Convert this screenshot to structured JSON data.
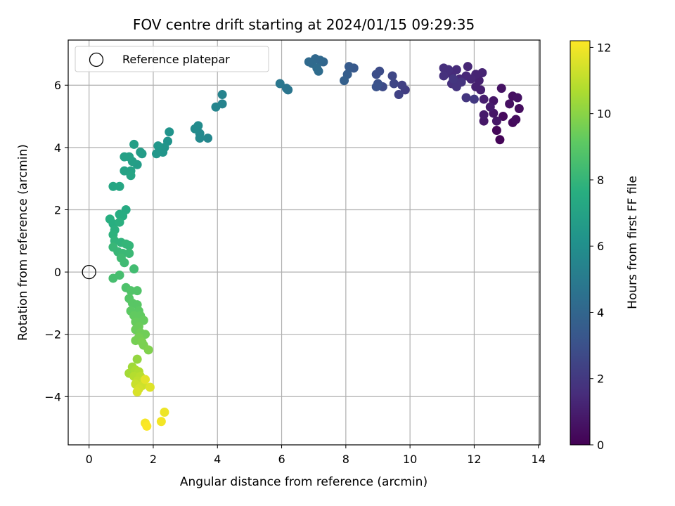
{
  "chart_data": {
    "type": "scatter",
    "title": "FOV centre drift starting at 2024/01/15 09:29:35",
    "xlabel": "Angular distance from reference (arcmin)",
    "ylabel": "Rotation from reference (arcmin)",
    "xlim": [
      -0.65,
      14.05
    ],
    "ylim": [
      -5.55,
      7.45
    ],
    "xticks": [
      0,
      2,
      4,
      6,
      8,
      10,
      12,
      14
    ],
    "yticks": [
      -4,
      -2,
      0,
      2,
      4,
      6
    ],
    "grid": true,
    "legend": {
      "position": "top-left",
      "entries": [
        "Reference platepar"
      ]
    },
    "reference_point": {
      "x": 0,
      "y": 0,
      "label": "Reference platepar"
    },
    "colorbar": {
      "label": "Hours from first FF file",
      "range": [
        0,
        12.2
      ],
      "ticks": [
        0,
        2,
        4,
        6,
        8,
        10,
        12
      ],
      "colormap": "viridis"
    },
    "points": [
      {
        "x": 12.8,
        "y": 4.25,
        "c": 0.1
      },
      {
        "x": 12.7,
        "y": 4.55,
        "c": 0.2
      },
      {
        "x": 12.9,
        "y": 5.0,
        "c": 0.3
      },
      {
        "x": 13.2,
        "y": 4.8,
        "c": 0.3
      },
      {
        "x": 13.3,
        "y": 4.9,
        "c": 0.4
      },
      {
        "x": 13.4,
        "y": 5.25,
        "c": 0.4
      },
      {
        "x": 13.1,
        "y": 5.4,
        "c": 0.5
      },
      {
        "x": 13.2,
        "y": 5.65,
        "c": 0.5
      },
      {
        "x": 13.35,
        "y": 5.6,
        "c": 0.6
      },
      {
        "x": 12.85,
        "y": 5.9,
        "c": 0.6
      },
      {
        "x": 12.6,
        "y": 5.5,
        "c": 0.7
      },
      {
        "x": 12.6,
        "y": 5.1,
        "c": 0.7
      },
      {
        "x": 12.7,
        "y": 4.85,
        "c": 0.8
      },
      {
        "x": 12.3,
        "y": 4.85,
        "c": 0.8
      },
      {
        "x": 12.3,
        "y": 5.05,
        "c": 0.9
      },
      {
        "x": 12.5,
        "y": 5.3,
        "c": 0.9
      },
      {
        "x": 12.3,
        "y": 5.55,
        "c": 1.0
      },
      {
        "x": 12.2,
        "y": 5.85,
        "c": 1.0
      },
      {
        "x": 12.05,
        "y": 5.95,
        "c": 1.1
      },
      {
        "x": 12.15,
        "y": 6.15,
        "c": 1.1
      },
      {
        "x": 12.25,
        "y": 6.4,
        "c": 1.2
      },
      {
        "x": 12.05,
        "y": 6.35,
        "c": 1.2
      },
      {
        "x": 11.9,
        "y": 6.2,
        "c": 1.3
      },
      {
        "x": 11.8,
        "y": 6.6,
        "c": 1.3
      },
      {
        "x": 11.75,
        "y": 6.3,
        "c": 1.4
      },
      {
        "x": 11.55,
        "y": 6.2,
        "c": 1.4
      },
      {
        "x": 11.45,
        "y": 6.5,
        "c": 1.5
      },
      {
        "x": 11.3,
        "y": 6.35,
        "c": 1.5
      },
      {
        "x": 11.2,
        "y": 6.5,
        "c": 1.6
      },
      {
        "x": 11.05,
        "y": 6.55,
        "c": 1.6
      },
      {
        "x": 11.05,
        "y": 6.3,
        "c": 1.7
      },
      {
        "x": 11.3,
        "y": 6.05,
        "c": 1.7
      },
      {
        "x": 11.45,
        "y": 5.95,
        "c": 1.8
      },
      {
        "x": 11.6,
        "y": 6.1,
        "c": 1.8
      },
      {
        "x": 11.35,
        "y": 6.2,
        "c": 1.9
      },
      {
        "x": 11.75,
        "y": 5.6,
        "c": 1.9
      },
      {
        "x": 12.0,
        "y": 5.55,
        "c": 2.0
      },
      {
        "x": 9.85,
        "y": 5.85,
        "c": 2.2
      },
      {
        "x": 9.75,
        "y": 6.0,
        "c": 2.3
      },
      {
        "x": 9.65,
        "y": 5.7,
        "c": 2.4
      },
      {
        "x": 9.5,
        "y": 6.05,
        "c": 2.5
      },
      {
        "x": 9.45,
        "y": 6.3,
        "c": 2.6
      },
      {
        "x": 9.15,
        "y": 5.95,
        "c": 2.7
      },
      {
        "x": 9.05,
        "y": 6.45,
        "c": 2.8
      },
      {
        "x": 8.95,
        "y": 6.35,
        "c": 2.9
      },
      {
        "x": 9.0,
        "y": 6.05,
        "c": 3.0
      },
      {
        "x": 8.95,
        "y": 5.95,
        "c": 3.1
      },
      {
        "x": 8.25,
        "y": 6.55,
        "c": 3.4
      },
      {
        "x": 8.1,
        "y": 6.6,
        "c": 3.5
      },
      {
        "x": 8.05,
        "y": 6.35,
        "c": 3.6
      },
      {
        "x": 7.95,
        "y": 6.15,
        "c": 3.7
      },
      {
        "x": 7.3,
        "y": 6.75,
        "c": 4.0
      },
      {
        "x": 7.2,
        "y": 6.8,
        "c": 4.1
      },
      {
        "x": 7.05,
        "y": 6.85,
        "c": 4.1
      },
      {
        "x": 6.95,
        "y": 6.7,
        "c": 4.2
      },
      {
        "x": 6.85,
        "y": 6.75,
        "c": 4.2
      },
      {
        "x": 7.1,
        "y": 6.55,
        "c": 4.3
      },
      {
        "x": 7.15,
        "y": 6.45,
        "c": 4.3
      },
      {
        "x": 6.2,
        "y": 5.85,
        "c": 4.7
      },
      {
        "x": 6.15,
        "y": 5.9,
        "c": 4.7
      },
      {
        "x": 5.95,
        "y": 6.05,
        "c": 4.8
      },
      {
        "x": 4.15,
        "y": 5.7,
        "c": 5.4
      },
      {
        "x": 4.15,
        "y": 5.4,
        "c": 5.4
      },
      {
        "x": 3.95,
        "y": 5.3,
        "c": 5.5
      },
      {
        "x": 3.7,
        "y": 4.3,
        "c": 5.6
      },
      {
        "x": 3.45,
        "y": 4.45,
        "c": 5.7
      },
      {
        "x": 3.45,
        "y": 4.3,
        "c": 5.7
      },
      {
        "x": 3.4,
        "y": 4.7,
        "c": 5.8
      },
      {
        "x": 3.3,
        "y": 4.6,
        "c": 5.8
      },
      {
        "x": 2.5,
        "y": 4.5,
        "c": 6.2
      },
      {
        "x": 2.45,
        "y": 4.2,
        "c": 6.2
      },
      {
        "x": 2.35,
        "y": 4.0,
        "c": 6.3
      },
      {
        "x": 2.3,
        "y": 3.85,
        "c": 6.3
      },
      {
        "x": 2.15,
        "y": 4.05,
        "c": 6.4
      },
      {
        "x": 2.1,
        "y": 3.8,
        "c": 6.4
      },
      {
        "x": 1.65,
        "y": 3.8,
        "c": 6.6
      },
      {
        "x": 1.6,
        "y": 3.85,
        "c": 6.7
      },
      {
        "x": 1.5,
        "y": 3.45,
        "c": 6.7
      },
      {
        "x": 1.4,
        "y": 4.1,
        "c": 6.8
      },
      {
        "x": 1.35,
        "y": 3.55,
        "c": 6.8
      },
      {
        "x": 1.25,
        "y": 3.7,
        "c": 6.9
      },
      {
        "x": 1.1,
        "y": 3.7,
        "c": 6.9
      },
      {
        "x": 1.3,
        "y": 3.25,
        "c": 7.0
      },
      {
        "x": 1.1,
        "y": 3.25,
        "c": 7.0
      },
      {
        "x": 1.3,
        "y": 3.1,
        "c": 7.1
      },
      {
        "x": 0.95,
        "y": 2.75,
        "c": 7.2
      },
      {
        "x": 0.75,
        "y": 2.75,
        "c": 7.2
      },
      {
        "x": 1.15,
        "y": 2.0,
        "c": 7.4
      },
      {
        "x": 1.05,
        "y": 1.8,
        "c": 7.5
      },
      {
        "x": 0.95,
        "y": 1.85,
        "c": 7.5
      },
      {
        "x": 0.65,
        "y": 1.7,
        "c": 7.6
      },
      {
        "x": 0.75,
        "y": 1.55,
        "c": 7.6
      },
      {
        "x": 0.95,
        "y": 1.6,
        "c": 7.7
      },
      {
        "x": 0.8,
        "y": 1.35,
        "c": 7.7
      },
      {
        "x": 0.75,
        "y": 1.2,
        "c": 7.8
      },
      {
        "x": 0.8,
        "y": 1.0,
        "c": 7.9
      },
      {
        "x": 1.0,
        "y": 0.95,
        "c": 7.9
      },
      {
        "x": 1.15,
        "y": 0.9,
        "c": 8.0
      },
      {
        "x": 1.25,
        "y": 0.85,
        "c": 8.0
      },
      {
        "x": 0.75,
        "y": 0.8,
        "c": 8.1
      },
      {
        "x": 0.9,
        "y": 0.65,
        "c": 8.1
      },
      {
        "x": 1.05,
        "y": 0.6,
        "c": 8.2
      },
      {
        "x": 1.25,
        "y": 0.6,
        "c": 8.2
      },
      {
        "x": 1.0,
        "y": 0.45,
        "c": 8.3
      },
      {
        "x": 1.1,
        "y": 0.3,
        "c": 8.3
      },
      {
        "x": 1.4,
        "y": 0.1,
        "c": 8.4
      },
      {
        "x": 0.95,
        "y": -0.1,
        "c": 8.5
      },
      {
        "x": 0.75,
        "y": -0.2,
        "c": 8.5
      },
      {
        "x": 1.15,
        "y": -0.5,
        "c": 8.7
      },
      {
        "x": 1.3,
        "y": -0.6,
        "c": 8.8
      },
      {
        "x": 1.5,
        "y": -0.6,
        "c": 8.8
      },
      {
        "x": 1.25,
        "y": -0.85,
        "c": 8.9
      },
      {
        "x": 1.35,
        "y": -1.0,
        "c": 9.0
      },
      {
        "x": 1.5,
        "y": -1.05,
        "c": 9.0
      },
      {
        "x": 1.55,
        "y": -1.25,
        "c": 9.1
      },
      {
        "x": 1.3,
        "y": -1.25,
        "c": 9.1
      },
      {
        "x": 1.4,
        "y": -1.4,
        "c": 9.2
      },
      {
        "x": 1.6,
        "y": -1.4,
        "c": 9.2
      },
      {
        "x": 1.7,
        "y": -1.55,
        "c": 9.3
      },
      {
        "x": 1.45,
        "y": -1.6,
        "c": 9.3
      },
      {
        "x": 1.55,
        "y": -1.75,
        "c": 9.4
      },
      {
        "x": 1.45,
        "y": -1.85,
        "c": 9.4
      },
      {
        "x": 1.6,
        "y": -1.95,
        "c": 9.5
      },
      {
        "x": 1.75,
        "y": -2.0,
        "c": 9.5
      },
      {
        "x": 1.55,
        "y": -2.1,
        "c": 9.6
      },
      {
        "x": 1.45,
        "y": -2.2,
        "c": 9.6
      },
      {
        "x": 1.65,
        "y": -2.25,
        "c": 9.7
      },
      {
        "x": 1.7,
        "y": -2.35,
        "c": 9.7
      },
      {
        "x": 1.85,
        "y": -2.5,
        "c": 9.8
      },
      {
        "x": 1.5,
        "y": -2.8,
        "c": 10.2
      },
      {
        "x": 1.35,
        "y": -3.05,
        "c": 10.4
      },
      {
        "x": 1.25,
        "y": -3.25,
        "c": 10.5
      },
      {
        "x": 1.45,
        "y": -3.15,
        "c": 10.6
      },
      {
        "x": 1.55,
        "y": -3.2,
        "c": 10.7
      },
      {
        "x": 1.4,
        "y": -3.35,
        "c": 10.8
      },
      {
        "x": 1.6,
        "y": -3.35,
        "c": 10.9
      },
      {
        "x": 1.5,
        "y": -3.5,
        "c": 11.0
      },
      {
        "x": 1.7,
        "y": -3.5,
        "c": 11.1
      },
      {
        "x": 1.45,
        "y": -3.6,
        "c": 11.2
      },
      {
        "x": 1.65,
        "y": -3.65,
        "c": 11.3
      },
      {
        "x": 1.55,
        "y": -3.75,
        "c": 11.4
      },
      {
        "x": 1.5,
        "y": -3.85,
        "c": 11.5
      },
      {
        "x": 1.9,
        "y": -3.7,
        "c": 11.6
      },
      {
        "x": 1.75,
        "y": -3.45,
        "c": 11.7
      },
      {
        "x": 2.35,
        "y": -4.5,
        "c": 11.9
      },
      {
        "x": 2.25,
        "y": -4.8,
        "c": 12.0
      },
      {
        "x": 1.75,
        "y": -4.85,
        "c": 12.05
      },
      {
        "x": 1.8,
        "y": -4.95,
        "c": 12.15
      }
    ]
  }
}
